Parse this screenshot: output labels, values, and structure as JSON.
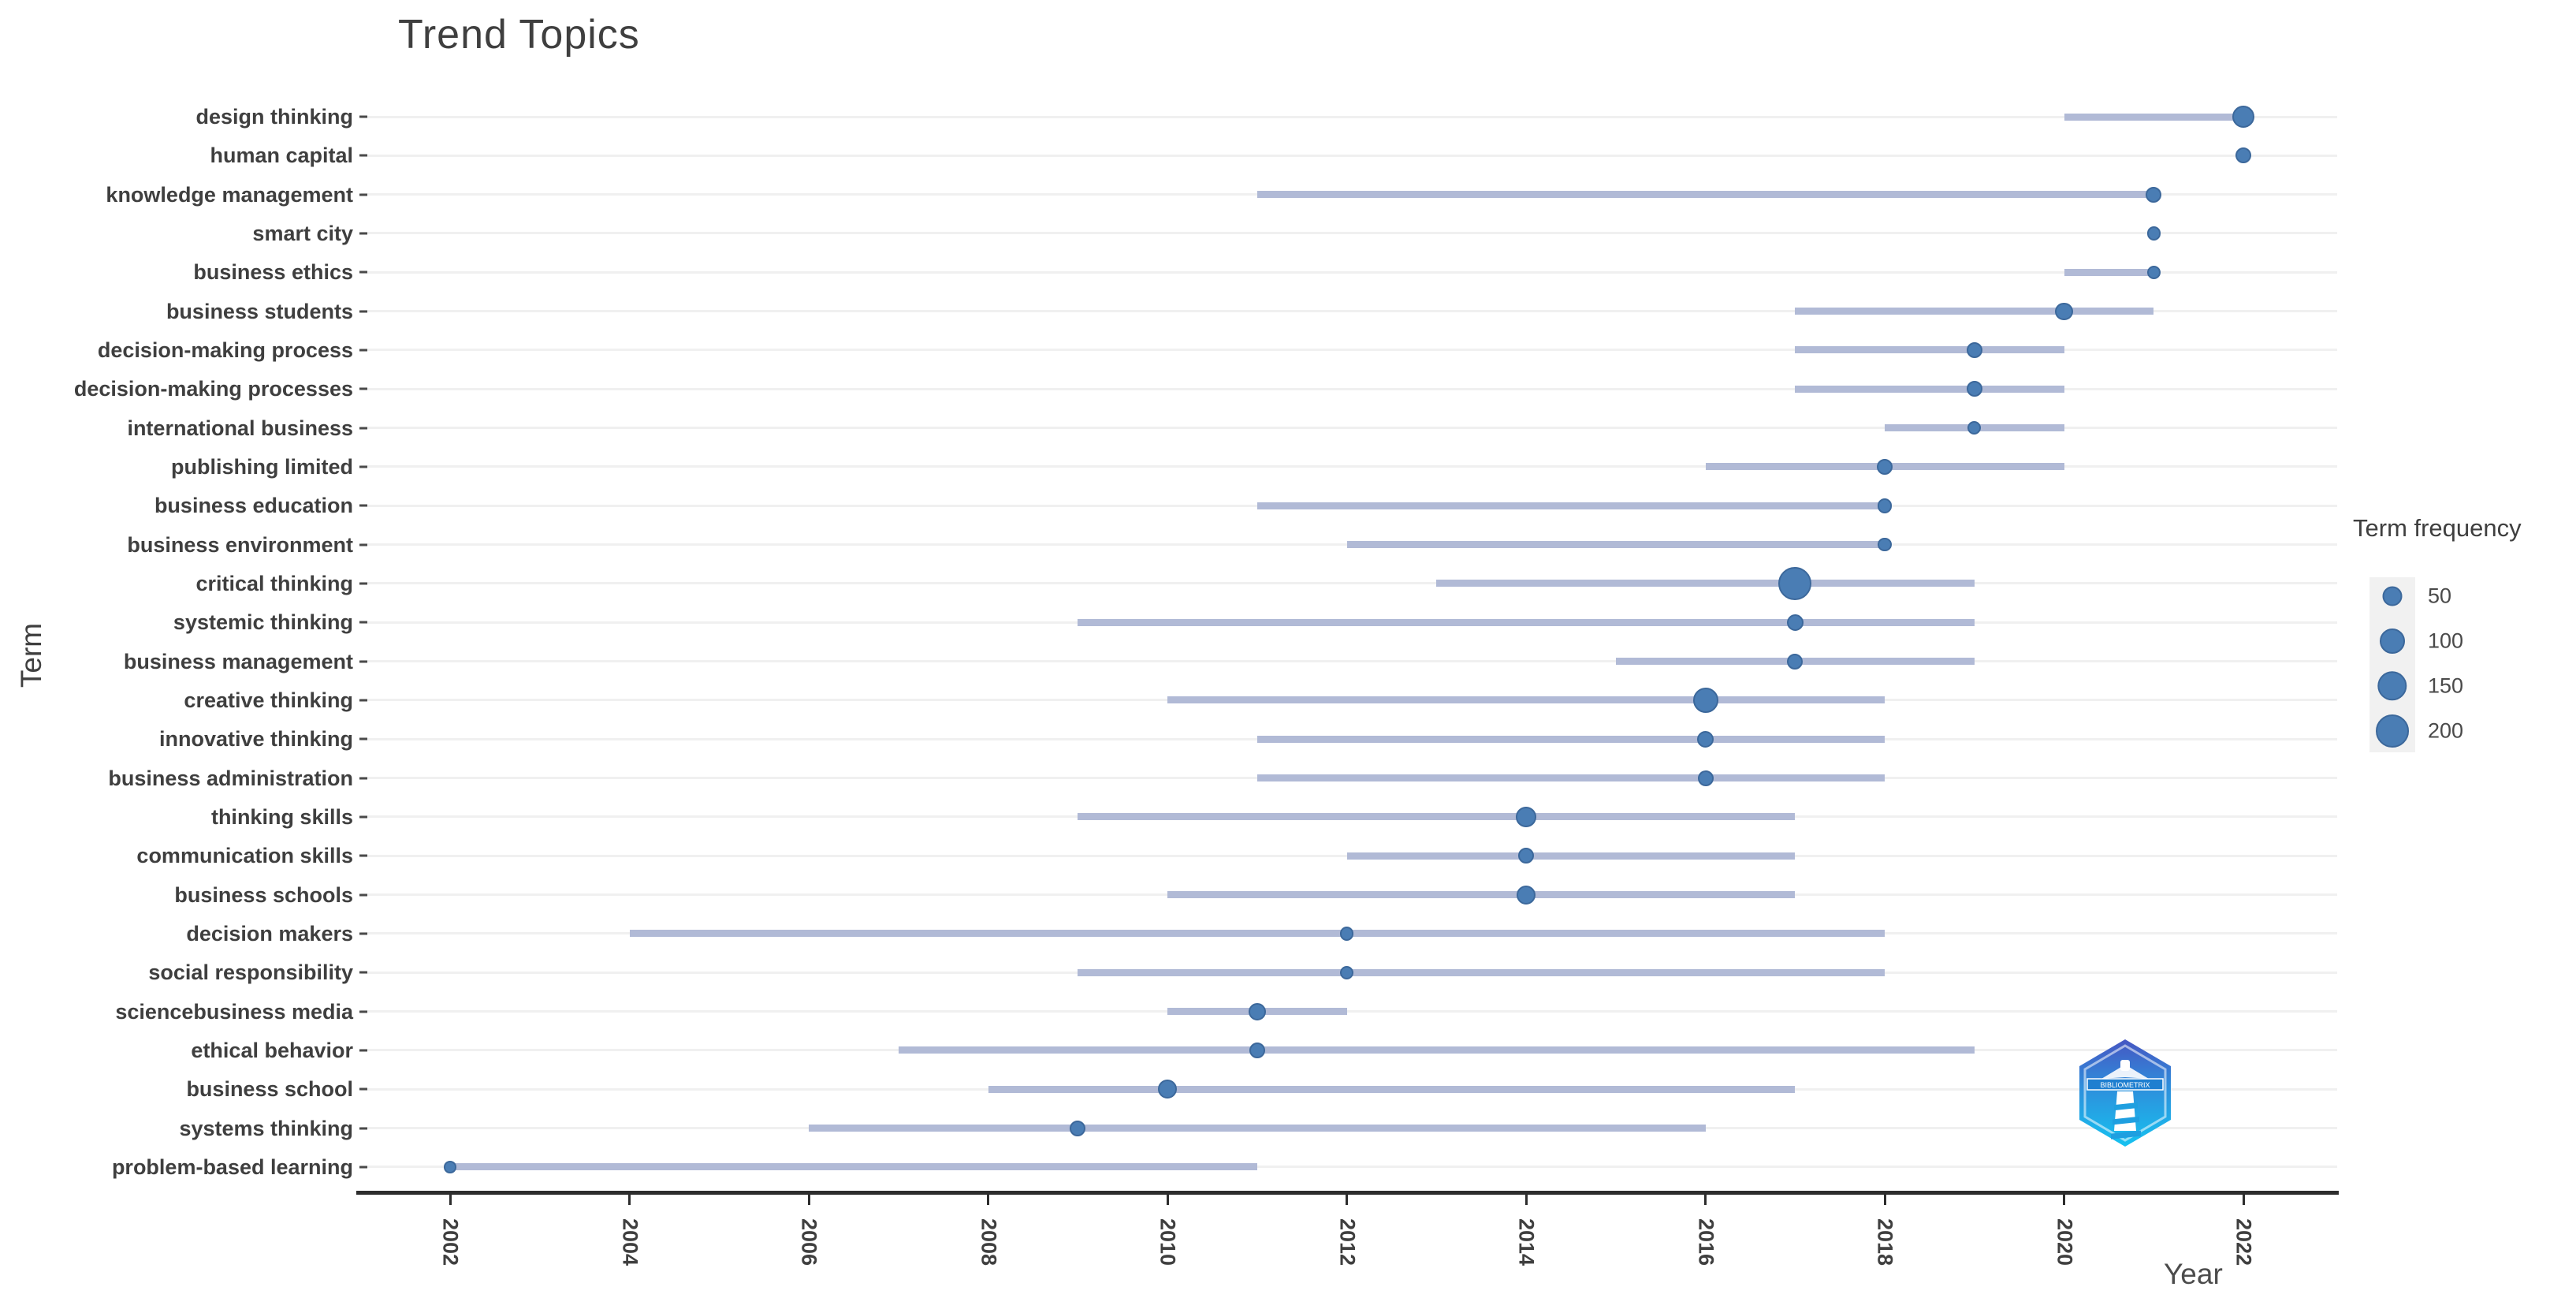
{
  "title": "Trend Topics",
  "x_axis": {
    "label": "Year",
    "ticks": [
      "2002",
      "2004",
      "2006",
      "2008",
      "2010",
      "2012",
      "2014",
      "2016",
      "2018",
      "2020",
      "2022"
    ]
  },
  "y_axis": {
    "label": "Term"
  },
  "legend": {
    "title": "Term frequency",
    "sizes": [
      50,
      100,
      150,
      200
    ]
  },
  "watermark": {
    "name": "bibliometrix-logo",
    "ribbon_text": "BIBLIOMETRIX"
  },
  "colors": {
    "dot_fill": "#4a7db4",
    "dot_edge": "#3c689b",
    "range_line": "#b1bad6",
    "gridline": "#f0f0f0",
    "axis_line": "#2d2d2d",
    "text": "#3f3f3f"
  },
  "chart_data": {
    "type": "scatter",
    "subtype": "dot-range-timeline",
    "title": "Trend Topics",
    "xlabel": "Year",
    "ylabel": "Term",
    "xlim": [
      2001,
      2023
    ],
    "x_ticks": [
      2002,
      2004,
      2006,
      2008,
      2010,
      2012,
      2014,
      2016,
      2018,
      2020,
      2022
    ],
    "grid": "horizontal-only",
    "legend": {
      "title": "Term frequency",
      "position": "right",
      "sizes": [
        50,
        100,
        150,
        200
      ]
    },
    "size_encoding": "dot size = term frequency",
    "terms": [
      {
        "term": "design thinking",
        "year_q1": 2020,
        "year_med": 2022,
        "year_q3": 2022,
        "freq": 70
      },
      {
        "term": "human capital",
        "year_q1": 2022,
        "year_med": 2022,
        "year_q3": 2022,
        "freq": 25
      },
      {
        "term": "knowledge management",
        "year_q1": 2011,
        "year_med": 2021,
        "year_q3": 2021,
        "freq": 25
      },
      {
        "term": "smart city",
        "year_q1": 2021,
        "year_med": 2021,
        "year_q3": 2021,
        "freq": 15
      },
      {
        "term": "business ethics",
        "year_q1": 2020,
        "year_med": 2021,
        "year_q3": 2021,
        "freq": 15
      },
      {
        "term": "business students",
        "year_q1": 2017,
        "year_med": 2020,
        "year_q3": 2021,
        "freq": 35
      },
      {
        "term": "decision-making process",
        "year_q1": 2017,
        "year_med": 2019,
        "year_q3": 2020,
        "freq": 25
      },
      {
        "term": "decision-making processes",
        "year_q1": 2017,
        "year_med": 2019,
        "year_q3": 2020,
        "freq": 25
      },
      {
        "term": "international business",
        "year_q1": 2018,
        "year_med": 2019,
        "year_q3": 2020,
        "freq": 15
      },
      {
        "term": "publishing limited",
        "year_q1": 2016,
        "year_med": 2018,
        "year_q3": 2020,
        "freq": 25
      },
      {
        "term": "business education",
        "year_q1": 2011,
        "year_med": 2018,
        "year_q3": 2018,
        "freq": 20
      },
      {
        "term": "business environment",
        "year_q1": 2012,
        "year_med": 2018,
        "year_q3": 2018,
        "freq": 15
      },
      {
        "term": "critical thinking",
        "year_q1": 2013,
        "year_med": 2017,
        "year_q3": 2019,
        "freq": 200
      },
      {
        "term": "systemic thinking",
        "year_q1": 2009,
        "year_med": 2017,
        "year_q3": 2019,
        "freq": 30
      },
      {
        "term": "business management",
        "year_q1": 2015,
        "year_med": 2017,
        "year_q3": 2019,
        "freq": 25
      },
      {
        "term": "creative thinking",
        "year_q1": 2010,
        "year_med": 2016,
        "year_q3": 2018,
        "freq": 100
      },
      {
        "term": "innovative thinking",
        "year_q1": 2011,
        "year_med": 2016,
        "year_q3": 2018,
        "freq": 30
      },
      {
        "term": "business administration",
        "year_q1": 2011,
        "year_med": 2016,
        "year_q3": 2018,
        "freq": 25
      },
      {
        "term": "thinking skills",
        "year_q1": 2009,
        "year_med": 2014,
        "year_q3": 2017,
        "freq": 55
      },
      {
        "term": "communication skills",
        "year_q1": 2012,
        "year_med": 2014,
        "year_q3": 2017,
        "freq": 25
      },
      {
        "term": "business schools",
        "year_q1": 2010,
        "year_med": 2014,
        "year_q3": 2017,
        "freq": 45
      },
      {
        "term": "decision makers",
        "year_q1": 2004,
        "year_med": 2012,
        "year_q3": 2018,
        "freq": 15
      },
      {
        "term": "social responsibility",
        "year_q1": 2009,
        "year_med": 2012,
        "year_q3": 2018,
        "freq": 15
      },
      {
        "term": "sciencebusiness media",
        "year_q1": 2010,
        "year_med": 2011,
        "year_q3": 2012,
        "freq": 35
      },
      {
        "term": "ethical behavior",
        "year_q1": 2007,
        "year_med": 2011,
        "year_q3": 2019,
        "freq": 25
      },
      {
        "term": "business school",
        "year_q1": 2008,
        "year_med": 2010,
        "year_q3": 2017,
        "freq": 45
      },
      {
        "term": "systems thinking",
        "year_q1": 2006,
        "year_med": 2009,
        "year_q3": 2016,
        "freq": 25
      },
      {
        "term": "problem-based learning",
        "year_q1": 2002,
        "year_med": 2002,
        "year_q3": 2011,
        "freq": 10
      }
    ]
  }
}
